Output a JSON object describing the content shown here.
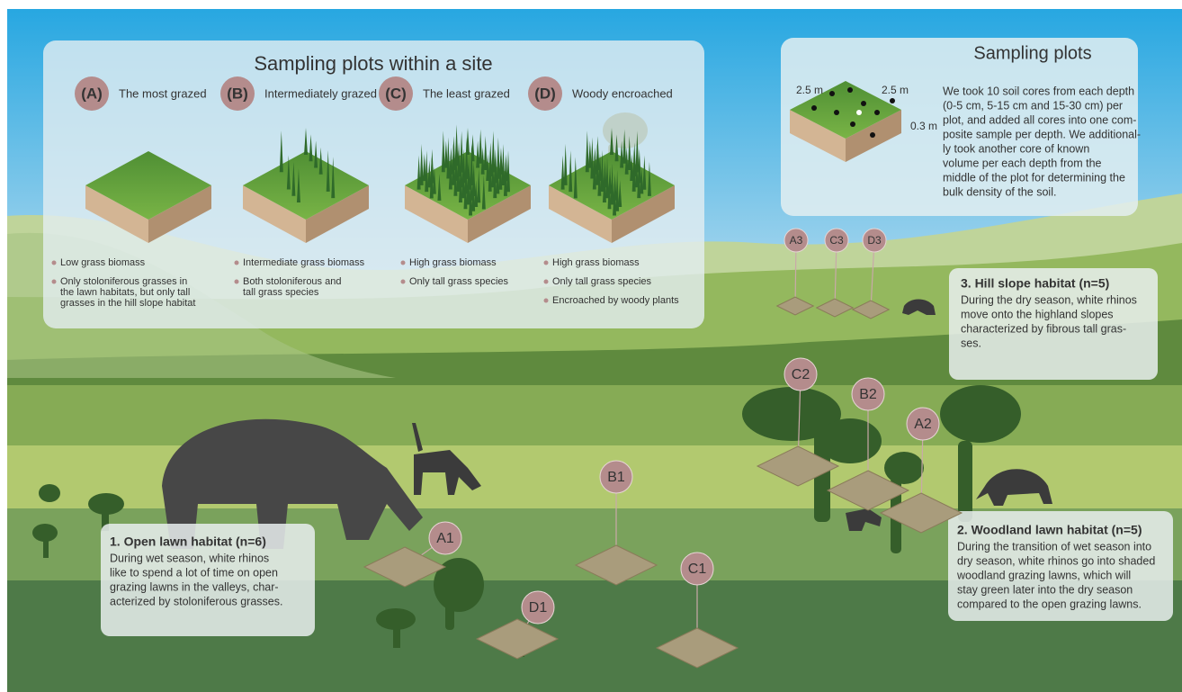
{
  "plot_types": {
    "title": "Sampling plots within a site",
    "items": [
      {
        "letter": "(A)",
        "label": "The most grazed",
        "notes": [
          [
            "Low grass biomass"
          ],
          [
            "Only stoloniferous grasses in",
            "the lawn habitats, but only tall",
            "grasses in the hill slope habitat"
          ]
        ]
      },
      {
        "letter": "(B)",
        "label": "Intermediately grazed",
        "notes": [
          [
            "Intermediate grass biomass"
          ],
          [
            "Both stoloniferous and",
            "tall grass species"
          ]
        ]
      },
      {
        "letter": "(C)",
        "label": "The least grazed",
        "notes": [
          [
            "High grass biomass"
          ],
          [
            "Only tall grass species"
          ]
        ]
      },
      {
        "letter": "(D)",
        "label": "Woody encroached",
        "notes": [
          [
            "High grass biomass"
          ],
          [
            "Only tall grass species"
          ],
          [
            "Encroached by woody plants"
          ]
        ]
      }
    ]
  },
  "sampling_plots": {
    "title": "Sampling plots",
    "dimensions": [
      "2.5 m",
      "2.5 m",
      "0.3 m"
    ],
    "description": [
      "We took 10 soil cores from each depth",
      "(0-5 cm, 5-15 cm and 15-30 cm) per",
      "plot, and added all cores into one com-",
      "posite sample per depth. We additional-",
      "ly took another core of known",
      "volume per each depth from the",
      "middle of the plot for determining the",
      "bulk density of the soil."
    ]
  },
  "habitats": [
    {
      "title": "1. Open lawn habitat (n=6)",
      "description": [
        "During wet season, white rhinos",
        "like to spend a lot of time on open",
        "grazing lawns  in the valleys, char-",
        "acterized by stoloniferous grasses."
      ]
    },
    {
      "title": "2. Woodland lawn habitat (n=5)",
      "description": [
        "During the transition of wet season into",
        "dry season, white rhinos go into shaded",
        "woodland grazing lawns, which will",
        "stay green later into the dry season",
        "compared to the open grazing lawns."
      ]
    },
    {
      "title": "3. Hill slope habitat (n=5)",
      "description": [
        "During the dry season, white rhinos",
        "move onto the highland slopes",
        "characterized by fibrous tall gras-",
        "ses."
      ]
    }
  ],
  "plot_markers": [
    "A1",
    "B1",
    "C1",
    "D1",
    "A2",
    "B2",
    "C2",
    "A3",
    "C3",
    "D3"
  ]
}
